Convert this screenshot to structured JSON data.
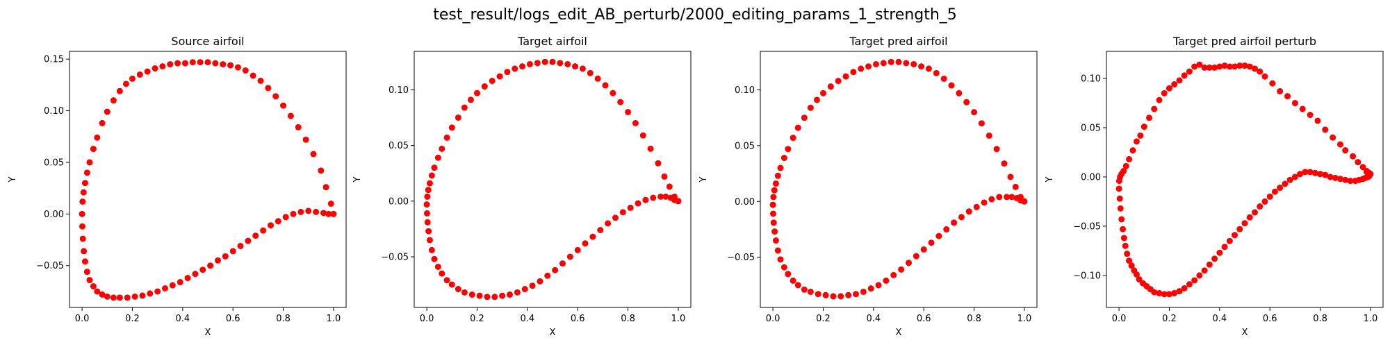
{
  "figure": {
    "suptitle": "test_result/logs_edit_AB_perturb/2000_editing_params_1_strength_5",
    "marker_color": "#ff0000"
  },
  "chart_data": [
    {
      "type": "scatter",
      "title": "Source airfoil",
      "xlabel": "X",
      "ylabel": "Y",
      "xlim": [
        -0.05,
        1.05
      ],
      "ylim": [
        -0.0905,
        0.1575
      ],
      "xticks": [
        0.0,
        0.2,
        0.4,
        0.6,
        0.8,
        1.0
      ],
      "xtick_labels": [
        "0.0",
        "0.2",
        "0.4",
        "0.6",
        "0.8",
        "1.0"
      ],
      "yticks": [
        -0.05,
        0.0,
        0.05,
        0.1,
        0.15
      ],
      "ytick_labels": [
        "−0.05",
        "0.00",
        "0.05",
        "0.10",
        "0.15"
      ],
      "series": [
        {
          "marker": "circle",
          "x": [
            1.0,
            0.99,
            0.97,
            0.95,
            0.92,
            0.89,
            0.86,
            0.83,
            0.8,
            0.77,
            0.74,
            0.71,
            0.68,
            0.65,
            0.62,
            0.59,
            0.56,
            0.53,
            0.5,
            0.47,
            0.44,
            0.41,
            0.38,
            0.35,
            0.32,
            0.29,
            0.26,
            0.23,
            0.2,
            0.175,
            0.15,
            0.125,
            0.1,
            0.08,
            0.06,
            0.045,
            0.03,
            0.02,
            0.012,
            0.006,
            0.002,
            0.0,
            0.001,
            0.003,
            0.007,
            0.012,
            0.02,
            0.03,
            0.045,
            0.06,
            0.08,
            0.1,
            0.125,
            0.15,
            0.18,
            0.21,
            0.24,
            0.27,
            0.3,
            0.33,
            0.36,
            0.39,
            0.42,
            0.45,
            0.48,
            0.51,
            0.54,
            0.57,
            0.6,
            0.63,
            0.66,
            0.69,
            0.72,
            0.75,
            0.78,
            0.81,
            0.84,
            0.87,
            0.9,
            0.93,
            0.96,
            0.98,
            1.0
          ],
          "y": [
            0.0,
            0.01,
            0.026,
            0.042,
            0.058,
            0.072,
            0.084,
            0.095,
            0.105,
            0.114,
            0.122,
            0.129,
            0.134,
            0.139,
            0.142,
            0.144,
            0.145,
            0.146,
            0.147,
            0.147,
            0.147,
            0.146,
            0.146,
            0.145,
            0.143,
            0.141,
            0.138,
            0.135,
            0.131,
            0.126,
            0.119,
            0.11,
            0.099,
            0.088,
            0.074,
            0.063,
            0.05,
            0.04,
            0.03,
            0.021,
            0.012,
            0.0,
            -0.012,
            -0.024,
            -0.036,
            -0.046,
            -0.056,
            -0.064,
            -0.07,
            -0.075,
            -0.078,
            -0.08,
            -0.081,
            -0.081,
            -0.081,
            -0.08,
            -0.079,
            -0.077,
            -0.075,
            -0.072,
            -0.069,
            -0.066,
            -0.062,
            -0.058,
            -0.054,
            -0.05,
            -0.045,
            -0.041,
            -0.036,
            -0.031,
            -0.026,
            -0.021,
            -0.016,
            -0.011,
            -0.007,
            -0.003,
            0.0,
            0.002,
            0.003,
            0.002,
            0.001,
            0.0,
            0.0
          ]
        }
      ]
    },
    {
      "type": "scatter",
      "title": "Target airfoil",
      "xlabel": "X",
      "ylabel": "Y",
      "xlim": [
        -0.05,
        1.05
      ],
      "ylim": [
        -0.0955,
        0.1345
      ],
      "xticks": [
        0.0,
        0.2,
        0.4,
        0.6,
        0.8,
        1.0
      ],
      "xtick_labels": [
        "0.0",
        "0.2",
        "0.4",
        "0.6",
        "0.8",
        "1.0"
      ],
      "yticks": [
        -0.05,
        0.0,
        0.05,
        0.1
      ],
      "ytick_labels": [
        "−0.05",
        "0.00",
        "0.05",
        "0.10"
      ],
      "series": [
        {
          "marker": "circle",
          "x": [
            1.0,
            0.985,
            0.965,
            0.945,
            0.92,
            0.89,
            0.86,
            0.83,
            0.8,
            0.77,
            0.74,
            0.71,
            0.68,
            0.65,
            0.62,
            0.59,
            0.56,
            0.53,
            0.5,
            0.47,
            0.44,
            0.41,
            0.38,
            0.35,
            0.32,
            0.29,
            0.26,
            0.23,
            0.2,
            0.175,
            0.15,
            0.125,
            0.1,
            0.08,
            0.06,
            0.045,
            0.03,
            0.02,
            0.012,
            0.006,
            0.002,
            0.0,
            0.001,
            0.003,
            0.007,
            0.012,
            0.02,
            0.03,
            0.045,
            0.06,
            0.08,
            0.1,
            0.125,
            0.15,
            0.18,
            0.21,
            0.24,
            0.27,
            0.3,
            0.33,
            0.36,
            0.39,
            0.42,
            0.45,
            0.48,
            0.51,
            0.54,
            0.57,
            0.6,
            0.63,
            0.66,
            0.69,
            0.72,
            0.75,
            0.78,
            0.81,
            0.84,
            0.87,
            0.9,
            0.93,
            0.95,
            0.97,
            0.985,
            1.0
          ],
          "y": [
            0.0,
            0.004,
            0.013,
            0.022,
            0.034,
            0.047,
            0.059,
            0.07,
            0.08,
            0.089,
            0.097,
            0.104,
            0.11,
            0.115,
            0.119,
            0.121,
            0.123,
            0.124,
            0.125,
            0.125,
            0.124,
            0.123,
            0.121,
            0.119,
            0.116,
            0.112,
            0.108,
            0.103,
            0.097,
            0.091,
            0.084,
            0.075,
            0.066,
            0.057,
            0.047,
            0.039,
            0.03,
            0.023,
            0.016,
            0.01,
            0.004,
            -0.003,
            -0.011,
            -0.019,
            -0.027,
            -0.035,
            -0.044,
            -0.052,
            -0.059,
            -0.065,
            -0.071,
            -0.075,
            -0.079,
            -0.082,
            -0.084,
            -0.085,
            -0.086,
            -0.086,
            -0.085,
            -0.084,
            -0.082,
            -0.079,
            -0.076,
            -0.072,
            -0.067,
            -0.062,
            -0.056,
            -0.05,
            -0.044,
            -0.038,
            -0.032,
            -0.026,
            -0.02,
            -0.015,
            -0.01,
            -0.006,
            -0.002,
            0.001,
            0.003,
            0.004,
            0.004,
            0.003,
            0.001,
            0.0
          ]
        }
      ]
    },
    {
      "type": "scatter",
      "title": "Target pred airfoil",
      "xlabel": "X",
      "ylabel": "Y",
      "xlim": [
        -0.05,
        1.05
      ],
      "ylim": [
        -0.095,
        0.1345
      ],
      "xticks": [
        0.0,
        0.2,
        0.4,
        0.6,
        0.8,
        1.0
      ],
      "xtick_labels": [
        "0.0",
        "0.2",
        "0.4",
        "0.6",
        "0.8",
        "1.0"
      ],
      "yticks": [
        -0.05,
        0.0,
        0.05,
        0.1
      ],
      "ytick_labels": [
        "−0.05",
        "0.00",
        "0.05",
        "0.10"
      ],
      "series": [
        {
          "marker": "circle",
          "x": [
            1.0,
            0.985,
            0.965,
            0.945,
            0.92,
            0.89,
            0.86,
            0.83,
            0.8,
            0.77,
            0.74,
            0.71,
            0.68,
            0.65,
            0.62,
            0.59,
            0.56,
            0.53,
            0.5,
            0.47,
            0.44,
            0.41,
            0.38,
            0.35,
            0.32,
            0.29,
            0.26,
            0.23,
            0.2,
            0.175,
            0.15,
            0.125,
            0.1,
            0.08,
            0.06,
            0.045,
            0.03,
            0.02,
            0.012,
            0.006,
            0.002,
            0.0,
            0.001,
            0.003,
            0.007,
            0.012,
            0.02,
            0.03,
            0.045,
            0.06,
            0.08,
            0.1,
            0.125,
            0.15,
            0.18,
            0.21,
            0.24,
            0.27,
            0.3,
            0.33,
            0.36,
            0.39,
            0.42,
            0.45,
            0.48,
            0.51,
            0.54,
            0.57,
            0.6,
            0.63,
            0.66,
            0.69,
            0.72,
            0.75,
            0.78,
            0.81,
            0.84,
            0.87,
            0.9,
            0.93,
            0.95,
            0.97,
            0.985,
            1.0
          ],
          "y": [
            0.0,
            0.004,
            0.013,
            0.022,
            0.034,
            0.047,
            0.059,
            0.07,
            0.08,
            0.089,
            0.097,
            0.104,
            0.11,
            0.115,
            0.119,
            0.121,
            0.123,
            0.124,
            0.125,
            0.125,
            0.124,
            0.123,
            0.121,
            0.119,
            0.116,
            0.112,
            0.108,
            0.103,
            0.097,
            0.091,
            0.084,
            0.075,
            0.066,
            0.057,
            0.047,
            0.039,
            0.03,
            0.023,
            0.016,
            0.01,
            0.004,
            -0.003,
            -0.011,
            -0.019,
            -0.027,
            -0.035,
            -0.044,
            -0.052,
            -0.059,
            -0.065,
            -0.071,
            -0.075,
            -0.079,
            -0.081,
            -0.083,
            -0.084,
            -0.085,
            -0.085,
            -0.084,
            -0.083,
            -0.081,
            -0.078,
            -0.075,
            -0.071,
            -0.066,
            -0.061,
            -0.055,
            -0.049,
            -0.043,
            -0.037,
            -0.031,
            -0.025,
            -0.019,
            -0.014,
            -0.009,
            -0.005,
            -0.001,
            0.002,
            0.004,
            0.004,
            0.004,
            0.003,
            0.001,
            0.0
          ]
        }
      ]
    },
    {
      "type": "scatter",
      "title": "Target pred airfoil perturb",
      "xlabel": "X",
      "ylabel": "Y",
      "xlim": [
        -0.05,
        1.05
      ],
      "ylim": [
        -0.1325,
        0.1275
      ],
      "xticks": [
        0.0,
        0.2,
        0.4,
        0.6,
        0.8,
        1.0
      ],
      "xtick_labels": [
        "0.0",
        "0.2",
        "0.4",
        "0.6",
        "0.8",
        "1.0"
      ],
      "yticks": [
        -0.1,
        -0.05,
        0.0,
        0.05,
        0.1
      ],
      "ytick_labels": [
        "−0.10",
        "−0.05",
        "0.00",
        "0.05",
        "0.10"
      ],
      "series": [
        {
          "marker": "circle",
          "x": [
            0.985,
            0.97,
            0.95,
            0.93,
            0.9,
            0.88,
            0.85,
            0.82,
            0.79,
            0.76,
            0.73,
            0.7,
            0.67,
            0.64,
            0.61,
            0.58,
            0.56,
            0.54,
            0.52,
            0.5,
            0.48,
            0.46,
            0.44,
            0.42,
            0.4,
            0.38,
            0.36,
            0.34,
            0.32,
            0.3,
            0.28,
            0.26,
            0.24,
            0.22,
            0.2,
            0.18,
            0.16,
            0.14,
            0.12,
            0.1,
            0.085,
            0.07,
            0.055,
            0.04,
            0.028,
            0.018,
            0.01,
            0.004,
            0.001,
            0.0,
            0.003,
            0.006,
            0.01,
            0.015,
            0.02,
            0.025,
            0.032,
            0.04,
            0.05,
            0.06,
            0.07,
            0.08,
            0.095,
            0.11,
            0.125,
            0.14,
            0.16,
            0.18,
            0.2,
            0.22,
            0.24,
            0.26,
            0.28,
            0.3,
            0.32,
            0.34,
            0.36,
            0.38,
            0.4,
            0.42,
            0.44,
            0.46,
            0.48,
            0.5,
            0.52,
            0.54,
            0.56,
            0.58,
            0.6,
            0.62,
            0.64,
            0.66,
            0.68,
            0.7,
            0.72,
            0.74,
            0.76,
            0.78,
            0.8,
            0.82,
            0.84,
            0.86,
            0.88,
            0.9,
            0.92,
            0.94,
            0.955,
            0.97,
            0.98,
            0.99,
            0.995,
            1.0,
            0.995,
            0.985
          ],
          "y": [
            0.006,
            0.01,
            0.015,
            0.021,
            0.027,
            0.033,
            0.04,
            0.048,
            0.057,
            0.063,
            0.069,
            0.075,
            0.082,
            0.087,
            0.095,
            0.102,
            0.107,
            0.11,
            0.112,
            0.113,
            0.113,
            0.112,
            0.112,
            0.113,
            0.112,
            0.111,
            0.111,
            0.111,
            0.114,
            0.112,
            0.107,
            0.103,
            0.098,
            0.094,
            0.09,
            0.085,
            0.078,
            0.069,
            0.06,
            0.051,
            0.042,
            0.036,
            0.027,
            0.018,
            0.011,
            0.006,
            0.003,
            0.0,
            -0.004,
            -0.012,
            -0.022,
            -0.032,
            -0.043,
            -0.053,
            -0.062,
            -0.07,
            -0.078,
            -0.085,
            -0.09,
            -0.095,
            -0.099,
            -0.104,
            -0.108,
            -0.111,
            -0.114,
            -0.117,
            -0.118,
            -0.119,
            -0.119,
            -0.118,
            -0.116,
            -0.113,
            -0.109,
            -0.105,
            -0.1,
            -0.095,
            -0.089,
            -0.083,
            -0.077,
            -0.071,
            -0.065,
            -0.059,
            -0.053,
            -0.047,
            -0.041,
            -0.036,
            -0.03,
            -0.025,
            -0.02,
            -0.015,
            -0.011,
            -0.007,
            -0.003,
            0.0,
            0.003,
            0.005,
            0.005,
            0.004,
            0.003,
            0.002,
            0.0,
            -0.001,
            -0.002,
            -0.003,
            -0.004,
            -0.004,
            -0.003,
            -0.002,
            -0.001,
            0.0,
            0.001,
            0.003,
            0.004,
            0.005
          ]
        }
      ]
    }
  ]
}
